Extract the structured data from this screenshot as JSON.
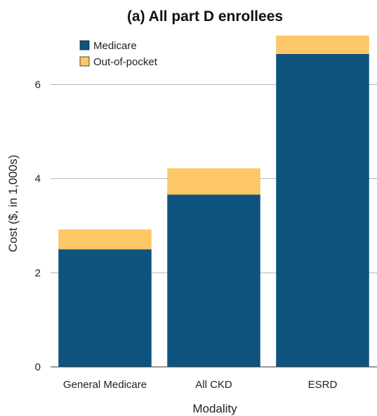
{
  "chart_data": {
    "type": "bar",
    "stacked": true,
    "title": "(a) All part D enrollees",
    "xlabel": "Modality",
    "ylabel": "Cost ($, in 1,000s)",
    "categories": [
      "General Medicare",
      "All CKD",
      "ESRD"
    ],
    "series": [
      {
        "name": "Medicare",
        "values": [
          2.5,
          3.66,
          6.65
        ],
        "color": "#0f547f"
      },
      {
        "name": "Out-of-pocket",
        "values": [
          0.42,
          0.56,
          0.39
        ],
        "color": "#fdc666"
      }
    ],
    "ylim": [
      0,
      7.2
    ],
    "yticks": [
      0,
      2,
      4,
      6
    ],
    "grid": true,
    "legend_position": "top-left"
  }
}
